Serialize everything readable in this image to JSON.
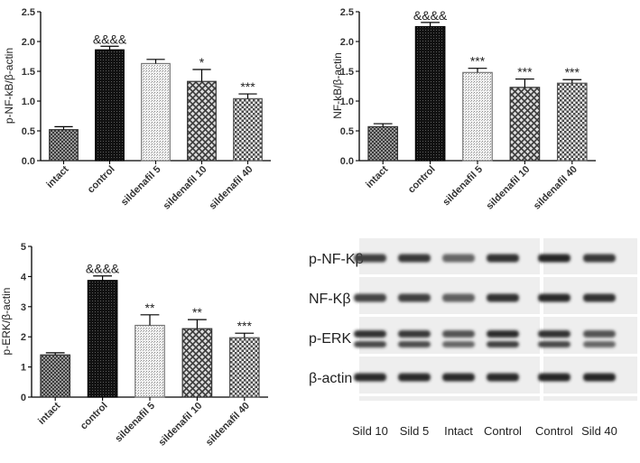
{
  "chart_data": [
    {
      "id": "pnfkb",
      "type": "bar",
      "ylabel": "p-NF-kB/β-actin",
      "ylim": [
        0,
        2.5
      ],
      "yticks": [
        "0.0",
        "0.5",
        "1.0",
        "1.5",
        "2.0",
        "2.5"
      ],
      "categories": [
        "intact",
        "control",
        "sildenafil 5",
        "sildenafil 10",
        "sildenafil 40"
      ],
      "values": [
        0.52,
        1.86,
        1.63,
        1.33,
        1.04
      ],
      "errors": [
        0.05,
        0.06,
        0.07,
        0.2,
        0.08
      ],
      "significance": [
        "",
        "&&&&",
        "",
        "*",
        "***"
      ],
      "grid": false
    },
    {
      "id": "nfkb",
      "type": "bar",
      "ylabel": "NF-kB/β-actin",
      "ylim": [
        0,
        2.5
      ],
      "yticks": [
        "0.0",
        "0.5",
        "1.0",
        "1.5",
        "2.0",
        "2.5"
      ],
      "categories": [
        "intact",
        "control",
        "sildenafil 5",
        "sildenafil 10",
        "sildenafil 40"
      ],
      "values": [
        0.57,
        2.25,
        1.48,
        1.23,
        1.3
      ],
      "errors": [
        0.05,
        0.07,
        0.07,
        0.14,
        0.06
      ],
      "significance": [
        "",
        "&&&&",
        "***",
        "***",
        "***"
      ],
      "grid": false
    },
    {
      "id": "perk",
      "type": "bar",
      "ylabel": "p-ERK/β-actin",
      "ylim": [
        0,
        5
      ],
      "yticks": [
        "0",
        "1",
        "2",
        "3",
        "4",
        "5"
      ],
      "categories": [
        "intact",
        "control",
        "sildenafil 5",
        "sildenafil 10",
        "sildenafil 40"
      ],
      "values": [
        1.4,
        3.87,
        2.38,
        2.27,
        1.97
      ],
      "errors": [
        0.07,
        0.15,
        0.35,
        0.3,
        0.15
      ],
      "significance": [
        "",
        "&&&&",
        "**",
        "**",
        "***"
      ],
      "grid": false
    }
  ],
  "series_colors": {
    "intact": "#777777",
    "control": "#111111",
    "sildenafil_5": "#cfcfcf",
    "sildenafil_10": "#8a8a8a",
    "sildenafil_40": "#6e6e6e"
  },
  "blot": {
    "rows": [
      "p-NF-Kβ",
      "NF-Kβ",
      "p-ERK",
      "β-actin"
    ],
    "lanes_left": [
      "Sild 10",
      "Sild 5",
      "Intact",
      "Control"
    ],
    "lanes_right": [
      "Control",
      "Sild 40"
    ]
  }
}
